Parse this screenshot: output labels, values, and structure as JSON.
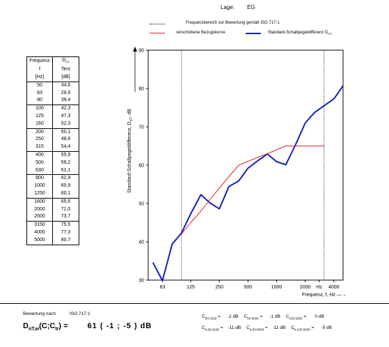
{
  "header": {
    "lage_label": "Lage:",
    "lage_value": "EG"
  },
  "legend": {
    "range": "Frequenzbereich zur Bewertung gemäß ISO 717-1",
    "ref": "verschobene Bezugskurve",
    "meas": "Standard-Schallpegeldifferenz D",
    "meas_sub": "nT",
    "colors": {
      "range": "#000000",
      "ref": "#e02020",
      "meas": "#1020c0"
    }
  },
  "table": {
    "h1": [
      "Frequenz",
      "f",
      "[Hz]"
    ],
    "h2": [
      "D",
      "Terz",
      "[dB]"
    ],
    "h2_sub": "nT",
    "rows": [
      [
        "50",
        "34,6"
      ],
      [
        "63",
        "29,9"
      ],
      [
        "80",
        "39,4"
      ],
      [
        "100",
        "42,3"
      ],
      [
        "125",
        "47,3"
      ],
      [
        "160",
        "52,3"
      ],
      [
        "200",
        "50,1"
      ],
      [
        "250",
        "48,6"
      ],
      [
        "315",
        "54,4"
      ],
      [
        "400",
        "55,9"
      ],
      [
        "500",
        "59,2"
      ],
      [
        "630",
        "61,1"
      ],
      [
        "800",
        "62,9"
      ],
      [
        "1000",
        "60,9"
      ],
      [
        "1250",
        "60,1"
      ],
      [
        "1600",
        "65,6"
      ],
      [
        "2000",
        "71,0"
      ],
      [
        "2500",
        "73,7"
      ],
      [
        "3150",
        "75,5"
      ],
      [
        "4000",
        "77,3"
      ],
      [
        "5000",
        "80,7"
      ]
    ]
  },
  "chart_data": {
    "type": "line",
    "x": [
      50,
      63,
      80,
      100,
      125,
      160,
      200,
      250,
      315,
      400,
      500,
      630,
      800,
      1000,
      1250,
      1600,
      2000,
      2500,
      3150,
      4000,
      5000
    ],
    "xscale": "log",
    "xlim": [
      44.7,
      5000
    ],
    "xtick_labels": [
      {
        "x": 63,
        "label": "63"
      },
      {
        "x": 125,
        "label": "125"
      },
      {
        "x": 250,
        "label": "250"
      },
      {
        "x": 500,
        "label": "500"
      },
      {
        "x": 1000,
        "label": "1000"
      },
      {
        "x": 2000,
        "label": "2000"
      },
      {
        "x": 2800,
        "label": "Hz"
      },
      {
        "x": 4000,
        "label": "4000"
      }
    ],
    "ylim": [
      30,
      90
    ],
    "yticks": [
      30,
      40,
      50,
      60,
      70,
      80,
      90
    ],
    "ylabel": "Standard-Schallpegeldifferenz, D",
    "ylabel_sub": "nT",
    "ylabel_unit": ", dB",
    "xlabel": "Frequenz, f, Hz",
    "range_lines": [
      100,
      3150
    ],
    "series": [
      {
        "name": "Standard-Schallpegeldifferenz DnT",
        "color": "#1020c0",
        "values": [
          34.6,
          29.9,
          39.4,
          42.3,
          47.3,
          52.3,
          50.1,
          48.6,
          54.4,
          55.9,
          59.2,
          61.1,
          62.9,
          60.9,
          60.1,
          65.6,
          71.0,
          73.7,
          75.5,
          77.3,
          80.7
        ]
      },
      {
        "name": "verschobene Bezugskurve",
        "color": "#e02020",
        "x": [
          100,
          125,
          160,
          200,
          250,
          315,
          400,
          500,
          630,
          800,
          1000,
          1250,
          1600,
          2000,
          2500,
          3150
        ],
        "values": [
          42,
          45,
          48,
          51,
          54,
          57,
          60,
          61,
          62,
          63,
          64,
          65,
          65,
          65,
          65,
          65
        ]
      }
    ]
  },
  "footer": {
    "bewertung": "Bewertung nach",
    "norm": "ISO 717-1",
    "main_label": "D",
    "main_sub": "nT,w",
    "main_paren": "(C;C",
    "main_sub2": "tr",
    "main_close": ") =",
    "main_value": "61  (  -1  ;  -5  ) dB",
    "row1": [
      {
        "label": "C",
        "sub": "50-3150",
        "eq": "=",
        "val": "-2",
        "unit": "dB"
      },
      {
        "label": "C",
        "sub": "50-5000",
        "eq": "=",
        "val": "-1",
        "unit": "dB"
      },
      {
        "label": "C",
        "sub": "100-5000",
        "eq": "=",
        "val": "0",
        "unit": "dB"
      }
    ],
    "row2": [
      {
        "label": "C",
        "sub": "tr,50-3150",
        "eq": "=",
        "val": "-11",
        "unit": "dB"
      },
      {
        "label": "C",
        "sub": "tr,50-5000",
        "eq": "=",
        "val": "-11",
        "unit": "dB"
      },
      {
        "label": "C",
        "sub": "tr,100-5000",
        "eq": "=",
        "val": "-5",
        "unit": "dB"
      }
    ]
  }
}
